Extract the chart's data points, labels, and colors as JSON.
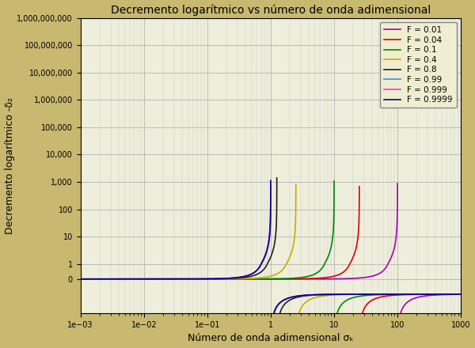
{
  "title": "Decremento logarítmico vs número de onda adimensional",
  "xlabel": "Número de onda adimensional σₖ",
  "ylabel": "Decremento logarítmico -δ₂",
  "background_color": "#c8b870",
  "plot_bg_color": "#eeeedc",
  "F_values": [
    0.01,
    0.04,
    0.1,
    0.4,
    0.8,
    0.99,
    0.999,
    0.9999
  ],
  "colors": [
    "#aa00aa",
    "#dd0000",
    "#008800",
    "#ccaa00",
    "#202020",
    "#4488ff",
    "#ff22ff",
    "#000088"
  ],
  "legend_labels": [
    "F = 0.01",
    "F = 0.04",
    "F = 0.1",
    "F = 0.4",
    "F = 0.8",
    "F = 0.99",
    "F = 0.999",
    "F = 0.9999"
  ],
  "xmin": 0.001,
  "xmax": 1000,
  "ymax": 1000000000.0,
  "linthresh": 1.0,
  "linscale": 0.5,
  "lw": 1.2
}
